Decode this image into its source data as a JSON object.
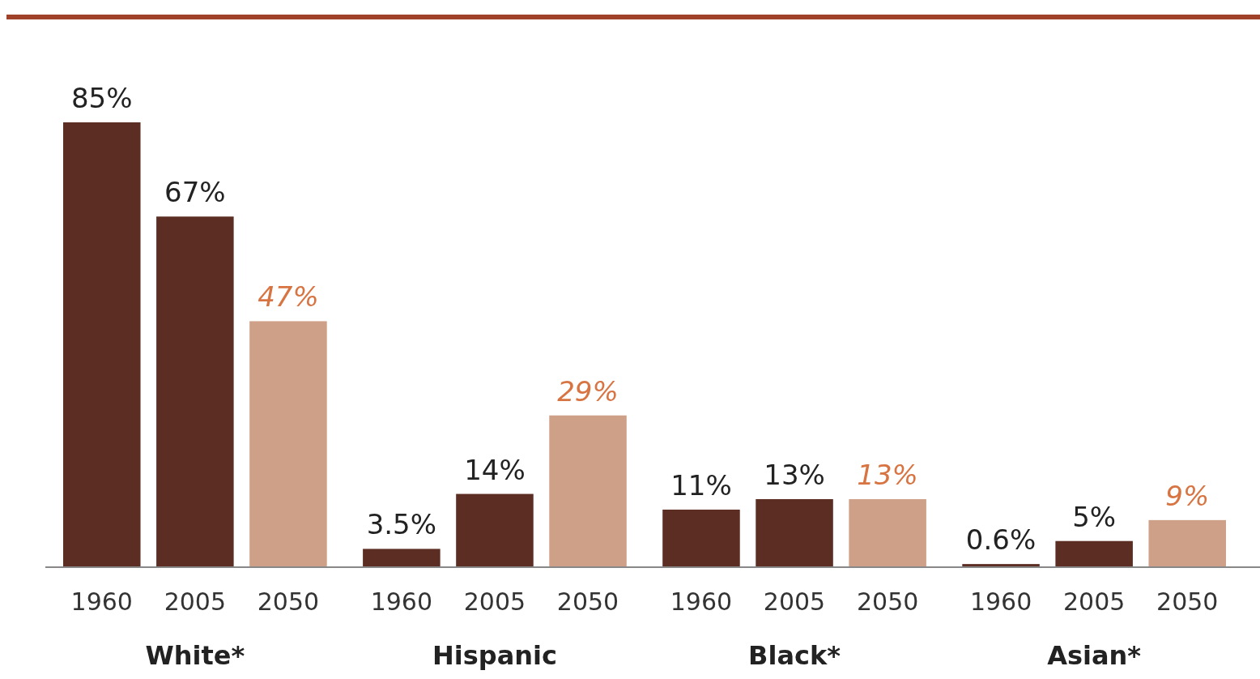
{
  "chart_data": {
    "type": "bar",
    "categories": [
      "White*",
      "Hispanic",
      "Black*",
      "Asian*"
    ],
    "series": [
      {
        "name": "1960",
        "color": "#5c2d22",
        "values": [
          85,
          3.5,
          11,
          0.6
        ],
        "value_labels": [
          "85%",
          "3.5%",
          "11%",
          "0.6%"
        ]
      },
      {
        "name": "2005",
        "color": "#5c2d22",
        "values": [
          67,
          14,
          13,
          5
        ],
        "value_labels": [
          "67%",
          "14%",
          "13%",
          "5%"
        ]
      },
      {
        "name": "2050",
        "color": "#cfa088",
        "values": [
          47,
          29,
          13,
          9
        ],
        "value_labels": [
          "47%",
          "29%",
          "13%",
          "9%"
        ]
      }
    ],
    "legend": false
  }
}
